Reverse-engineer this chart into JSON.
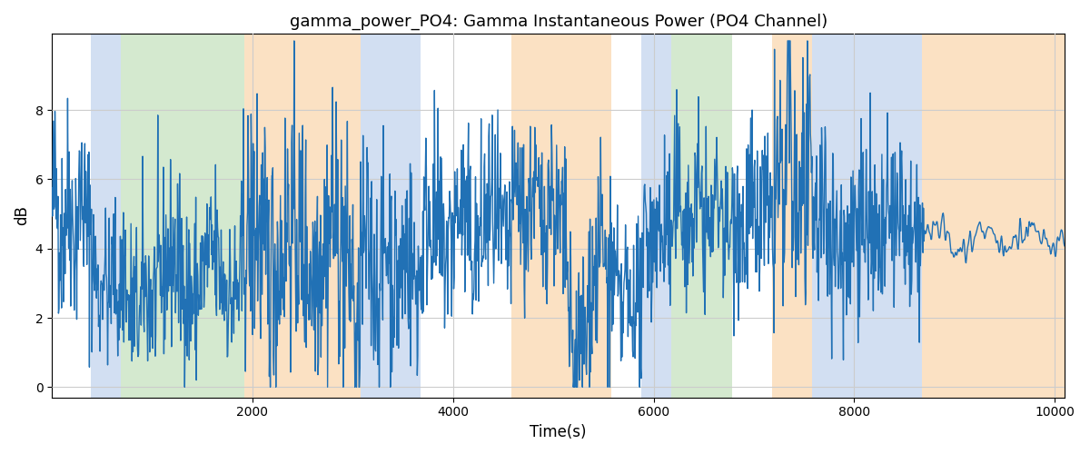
{
  "title": "gamma_power_PO4: Gamma Instantaneous Power (PO4 Channel)",
  "xlabel": "Time(s)",
  "ylabel": "dB",
  "xlim": [
    0,
    10100
  ],
  "ylim": [
    -0.3,
    10.2
  ],
  "yticks": [
    0,
    2,
    4,
    6,
    8
  ],
  "xticks": [
    2000,
    4000,
    6000,
    8000,
    10000
  ],
  "line_color": "#2171b5",
  "line_width": 1.0,
  "background_color": "#ffffff",
  "grid_color": "#cccccc",
  "regions": [
    {
      "xmin": 390,
      "xmax": 690,
      "color": "#aec6e8",
      "alpha": 0.55
    },
    {
      "xmin": 690,
      "xmax": 1920,
      "color": "#b2d8a8",
      "alpha": 0.55
    },
    {
      "xmin": 1920,
      "xmax": 3080,
      "color": "#f9c993",
      "alpha": 0.55
    },
    {
      "xmin": 3080,
      "xmax": 3680,
      "color": "#aec6e8",
      "alpha": 0.55
    },
    {
      "xmin": 4580,
      "xmax": 5580,
      "color": "#f9c993",
      "alpha": 0.55
    },
    {
      "xmin": 5880,
      "xmax": 6180,
      "color": "#aec6e8",
      "alpha": 0.55
    },
    {
      "xmin": 6180,
      "xmax": 6780,
      "color": "#b2d8a8",
      "alpha": 0.55
    },
    {
      "xmin": 7180,
      "xmax": 7580,
      "color": "#f9c993",
      "alpha": 0.55
    },
    {
      "xmin": 7580,
      "xmax": 8680,
      "color": "#aec6e8",
      "alpha": 0.55
    },
    {
      "xmin": 8680,
      "xmax": 10200,
      "color": "#f9c993",
      "alpha": 0.55
    }
  ],
  "seed": 42,
  "n_points": 2000,
  "x_start": 0,
  "x_end": 10100,
  "signal_mean": 4.2,
  "signal_std": 1.3
}
